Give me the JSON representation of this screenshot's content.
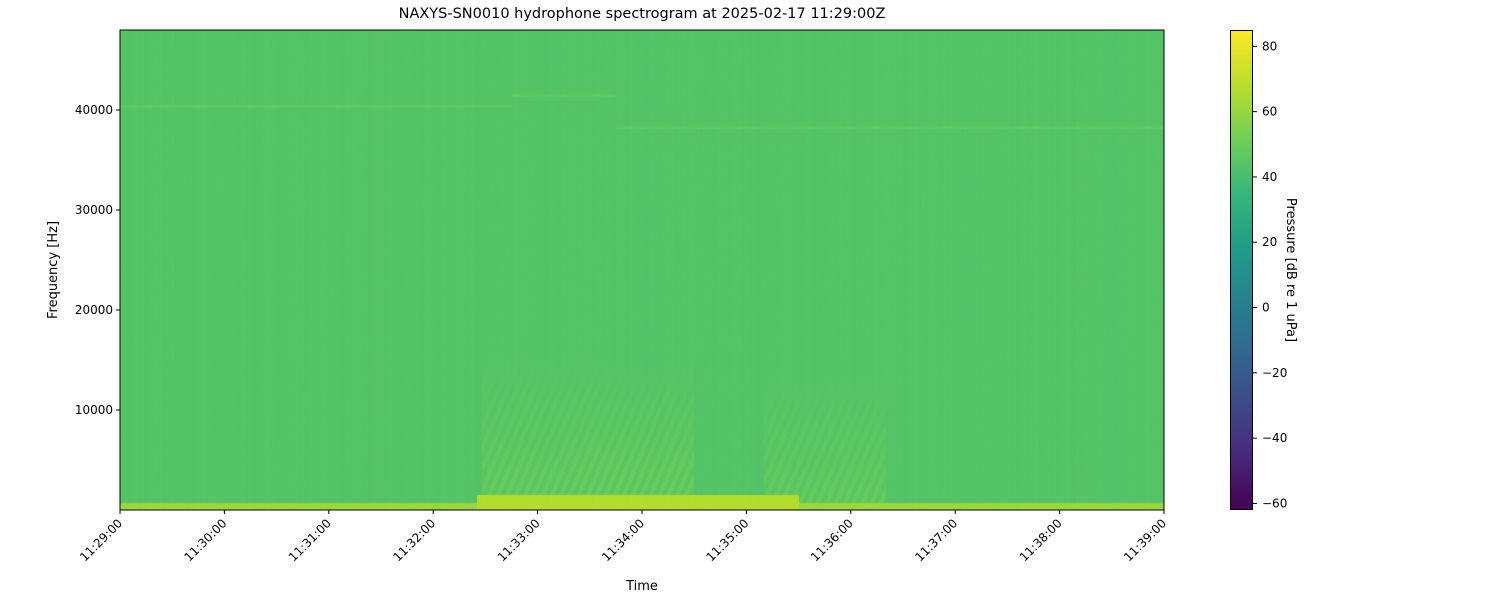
{
  "chart_data": {
    "type": "heatmap",
    "title": "NAXYS-SN0010 hydrophone spectrogram at 2025-02-17 11:29:00Z",
    "xlabel": "Time",
    "ylabel": "Frequency [Hz]",
    "colorbar_label": "Pressure [dB re 1 uPa]",
    "colormap": "viridis",
    "xlim": [
      "11:29:00",
      "11:39:00"
    ],
    "ylim": [
      0,
      48000
    ],
    "clim": [
      -62,
      85
    ],
    "x_ticks": [
      "11:29:00",
      "11:30:00",
      "11:31:00",
      "11:32:00",
      "11:33:00",
      "11:34:00",
      "11:35:00",
      "11:36:00",
      "11:37:00",
      "11:38:00",
      "11:39:00"
    ],
    "y_ticks": [
      10000,
      20000,
      30000,
      40000
    ],
    "colorbar_ticks": [
      -60,
      -40,
      -20,
      0,
      20,
      40,
      60,
      80
    ],
    "background_level_db": 45,
    "features": [
      {
        "kind": "tone",
        "start": "11:29:00",
        "end": "11:32:45",
        "freq_hz": 40400,
        "level_db": 50
      },
      {
        "kind": "tone",
        "start": "11:32:45",
        "end": "11:33:45",
        "freq_hz": 41500,
        "level_db": 50
      },
      {
        "kind": "tone",
        "start": "11:33:45",
        "end": "11:39:00",
        "freq_hz": 38300,
        "level_db": 50
      },
      {
        "kind": "band",
        "start": "11:29:00",
        "end": "11:39:00",
        "fmin_hz": 0,
        "fmax_hz": 700,
        "level_db": 62
      },
      {
        "kind": "band",
        "start": "11:32:25",
        "end": "11:35:30",
        "fmin_hz": 0,
        "fmax_hz": 1500,
        "level_db": 68
      },
      {
        "kind": "broadband",
        "start": "11:32:28",
        "end": "11:33:45",
        "fmin_hz": 0,
        "fmax_hz": 15500,
        "level_db": 52
      },
      {
        "kind": "broadband",
        "start": "11:33:30",
        "end": "11:34:30",
        "fmin_hz": 0,
        "fmax_hz": 14500,
        "level_db": 53
      },
      {
        "kind": "broadband",
        "start": "11:35:10",
        "end": "11:36:20",
        "fmin_hz": 0,
        "fmax_hz": 13500,
        "level_db": 51
      }
    ]
  }
}
